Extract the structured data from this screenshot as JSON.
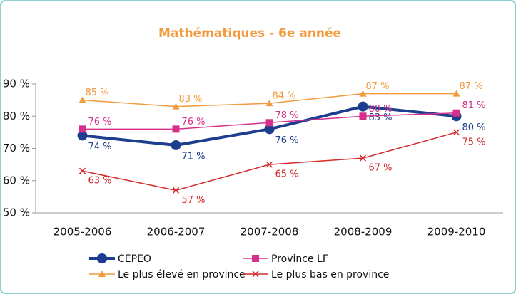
{
  "chart_data": {
    "type": "line",
    "title": "Mathématiques - 6e année",
    "categories": [
      "2005-2006",
      "2006-2007",
      "2007-2008",
      "2008-2009",
      "2009-2010"
    ],
    "ylim": [
      50,
      90
    ],
    "yticks": [
      {
        "value": 50,
        "label": "50 %"
      },
      {
        "value": 60,
        "label": "60 %"
      },
      {
        "value": 70,
        "label": "70 %"
      },
      {
        "value": 80,
        "label": "80 %"
      },
      {
        "value": 90,
        "label": "90 %"
      }
    ],
    "grid": false,
    "series": [
      {
        "name": "CEPEO",
        "color": "#1d3e8e",
        "marker": "circle",
        "values": [
          74,
          71,
          76,
          83,
          80
        ],
        "value_labels": [
          "74 %",
          "71 %",
          "76 %",
          "83 %",
          "80 %"
        ]
      },
      {
        "name": "Province LF",
        "color": "#d6308a",
        "marker": "square",
        "values": [
          76,
          76,
          78,
          80,
          81
        ],
        "value_labels": [
          "76 %",
          "76 %",
          "78 %",
          "80 %",
          "81 %"
        ]
      },
      {
        "name": "Le plus élevé en province",
        "color": "#f29a3c",
        "marker": "triangle",
        "values": [
          85,
          83,
          84,
          87,
          87
        ],
        "value_labels": [
          "85 %",
          "83 %",
          "84 %",
          "87 %",
          "87 %"
        ]
      },
      {
        "name": "Le plus bas en province",
        "color": "#d42a2a",
        "marker": "x",
        "values": [
          63,
          57,
          65,
          67,
          75
        ],
        "value_labels": [
          "63 %",
          "57 %",
          "65 %",
          "67 %",
          "75 %"
        ]
      }
    ]
  }
}
